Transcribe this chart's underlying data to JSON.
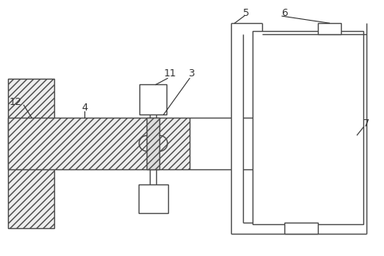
{
  "bg_color": "#ffffff",
  "line_color": "#4a4a4a",
  "hatch_color": "#666666",
  "lw": 1.0,
  "label_fontsize": 9,
  "label_color": "#333333"
}
